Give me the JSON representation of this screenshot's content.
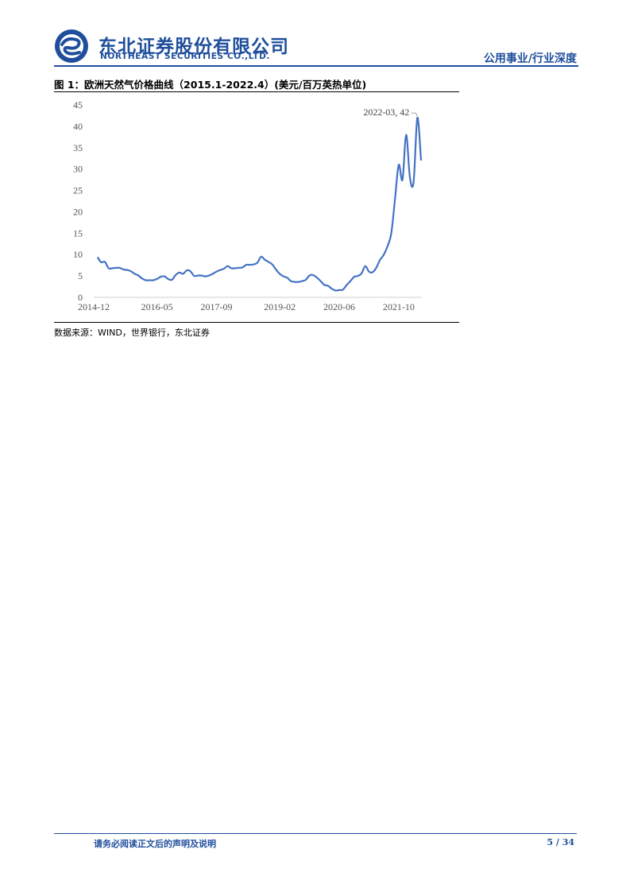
{
  "header": {
    "company_cn": "东北证券股份有限公司",
    "company_en": "NORTHEAST SECURITIES CO.,LTD.",
    "report_type": "公用事业/行业深度",
    "brand_color": "#1f4e9c"
  },
  "figure": {
    "title": "图 1：欧洲天然气价格曲线（2015.1-2022.4）(美元/百万英热单位)",
    "source": "数据来源：WIND，世界银行，东北证券"
  },
  "chart_data": {
    "type": "line",
    "title": "",
    "xlabel": "",
    "ylabel": "",
    "ylim": [
      0,
      45
    ],
    "yticks": [
      0,
      5,
      10,
      15,
      20,
      25,
      30,
      35,
      40,
      45
    ],
    "xtick_labels": [
      "2014-12",
      "2016-05",
      "2017-09",
      "2019-02",
      "2020-06",
      "2021-10"
    ],
    "xlim": [
      "2014-12",
      "2022-04"
    ],
    "grid": false,
    "line_color": "#4472c4",
    "series": [
      {
        "x": [
          "2015-01",
          "2015-02",
          "2015-03",
          "2015-04",
          "2015-05",
          "2015-06",
          "2015-07",
          "2015-08",
          "2015-09",
          "2015-10",
          "2015-11",
          "2015-12",
          "2016-01",
          "2016-02",
          "2016-03",
          "2016-04",
          "2016-05",
          "2016-06",
          "2016-07",
          "2016-08",
          "2016-09",
          "2016-10",
          "2016-11",
          "2016-12",
          "2017-01",
          "2017-02",
          "2017-03",
          "2017-04",
          "2017-05",
          "2017-06",
          "2017-07",
          "2017-08",
          "2017-09",
          "2017-10",
          "2017-11",
          "2017-12",
          "2018-01",
          "2018-02",
          "2018-03",
          "2018-04",
          "2018-05",
          "2018-06",
          "2018-07",
          "2018-08",
          "2018-09",
          "2018-10",
          "2018-11",
          "2018-12",
          "2019-01",
          "2019-02",
          "2019-03",
          "2019-04",
          "2019-05",
          "2019-06",
          "2019-07",
          "2019-08",
          "2019-09",
          "2019-10",
          "2019-11",
          "2019-12",
          "2020-01",
          "2020-02",
          "2020-03",
          "2020-04",
          "2020-05",
          "2020-06",
          "2020-07",
          "2020-08",
          "2020-09",
          "2020-10",
          "2020-11",
          "2020-12",
          "2021-01",
          "2021-02",
          "2021-03",
          "2021-04",
          "2021-05",
          "2021-06",
          "2021-07",
          "2021-08",
          "2021-09",
          "2021-10",
          "2021-11",
          "2021-12",
          "2022-01",
          "2022-02",
          "2022-03",
          "2022-04"
        ],
        "values": [
          9.4,
          8.2,
          8.3,
          6.8,
          6.8,
          6.9,
          6.9,
          6.5,
          6.4,
          6.1,
          5.5,
          5.1,
          4.4,
          4.0,
          4.0,
          4.0,
          4.3,
          4.8,
          4.9,
          4.3,
          4.1,
          5.2,
          5.8,
          5.5,
          6.3,
          6.1,
          5.0,
          5.1,
          5.1,
          4.9,
          5.1,
          5.5,
          6.0,
          6.4,
          6.7,
          7.3,
          6.8,
          6.8,
          6.9,
          7.0,
          7.6,
          7.6,
          7.7,
          8.1,
          9.5,
          8.8,
          8.3,
          7.7,
          6.5,
          5.5,
          4.9,
          4.6,
          3.8,
          3.6,
          3.6,
          3.8,
          4.1,
          5.1,
          5.2,
          4.6,
          3.8,
          2.9,
          2.7,
          2.0,
          1.6,
          1.7,
          1.8,
          2.9,
          3.8,
          4.8,
          5.0,
          5.6,
          7.3,
          6.0,
          5.9,
          7.0,
          8.8,
          10.0,
          12.0,
          15.0,
          23.0,
          31.0,
          27.5,
          38.0,
          28.0,
          27.0,
          42.0,
          32.0
        ]
      }
    ],
    "annotations": [
      {
        "x": "2022-03",
        "y": 42,
        "text": "2022-03, 42"
      }
    ]
  },
  "footer": {
    "note": "请务必阅读正文后的声明及说明",
    "page": "5 / 34"
  }
}
